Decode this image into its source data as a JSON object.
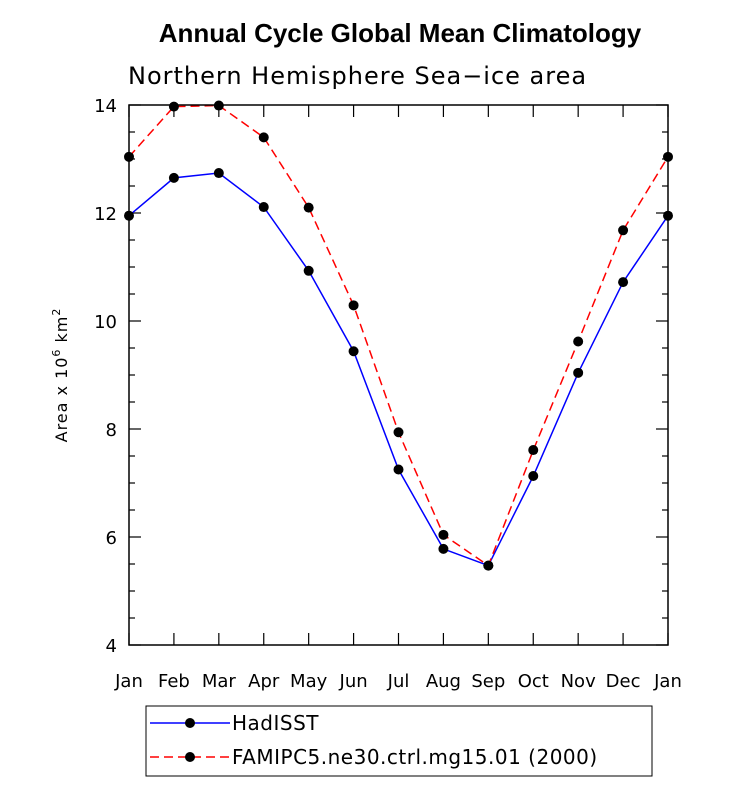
{
  "chart_data": {
    "type": "line",
    "title": "Annual Cycle Global Mean Climatology",
    "subtitle": "Northern Hemisphere Sea−ice area",
    "ylabel": "Area x 10",
    "ylabel_exp": "6",
    "ylabel_unit": " km",
    "ylabel_unit_exp": "2",
    "categories": [
      "Jan",
      "Feb",
      "Mar",
      "Apr",
      "May",
      "Jun",
      "Jul",
      "Aug",
      "Sep",
      "Oct",
      "Nov",
      "Dec",
      "Jan"
    ],
    "ylim": [
      4,
      14
    ],
    "yticks": [
      4,
      6,
      8,
      10,
      12,
      14
    ],
    "grid": false,
    "legend_position": "bottom",
    "series": [
      {
        "name": "HadISST",
        "color": "#0000ff",
        "line_style": "solid",
        "marker": "filled-circle",
        "values": [
          11.95,
          12.65,
          12.74,
          12.11,
          10.93,
          9.44,
          7.25,
          5.78,
          5.47,
          7.13,
          9.04,
          10.72,
          11.95
        ]
      },
      {
        "name": "FAMIPC5.ne30.ctrl.mg15.01 (2000)",
        "color": "#ff0000",
        "line_style": "dashed",
        "marker": "filled-circle",
        "values": [
          13.04,
          13.97,
          13.99,
          13.4,
          12.1,
          10.29,
          7.94,
          6.04,
          5.47,
          7.61,
          9.62,
          11.68,
          13.04
        ]
      }
    ]
  }
}
